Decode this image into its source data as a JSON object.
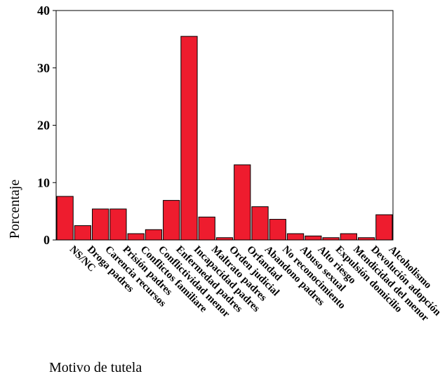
{
  "chart_data": {
    "type": "bar",
    "xlabel": "Motivo de tutela",
    "ylabel": "Porcentaje",
    "ylim": [
      0,
      40
    ],
    "yticks": [
      0,
      10,
      20,
      30,
      40
    ],
    "grid": false,
    "legend": "none",
    "bar_color": "#ee1c2e",
    "categories": [
      "NS/NC",
      "Droga padres",
      "Carencia recursos",
      "Prisión padres",
      "Conflictos familiare",
      "Conflictividad menor",
      "Enfermedad padres",
      "Incapacidad padres",
      "Maltrato padres",
      "Orden judicial",
      "Orfandad",
      "Abandono padres",
      "No reconocimiento",
      "Abuso sexual",
      "Alto riesgo",
      "Expulsión domicilio",
      "Mendicidad del menor",
      "Devolución adopción",
      "Alcoholismo"
    ],
    "values": [
      7.6,
      2.5,
      5.4,
      5.4,
      1.1,
      1.8,
      6.9,
      35.5,
      4.0,
      0.4,
      13.1,
      5.8,
      3.6,
      1.1,
      0.7,
      0.4,
      1.1,
      0.4,
      4.4
    ]
  }
}
